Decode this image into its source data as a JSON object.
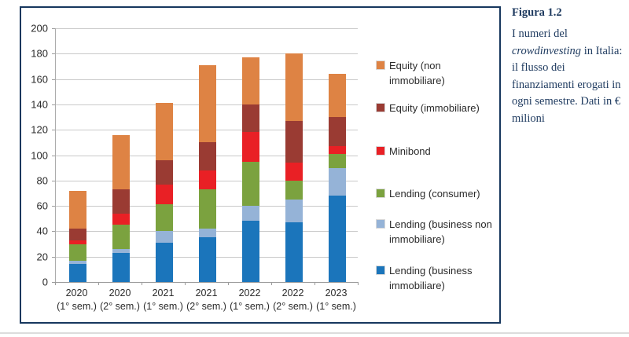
{
  "figure": {
    "label": "Figura 1.2",
    "caption_prefix": "I numeri del ",
    "caption_italic": "crowdinvesting",
    "caption_suffix": " in Italia: il flusso dei finanziamenti erogati in ogni semestre. Dati in € milioni"
  },
  "chart_data": {
    "type": "bar",
    "stacked": true,
    "title": "",
    "xlabel": "",
    "ylabel": "",
    "ylim": [
      0,
      200
    ],
    "yticks": [
      0,
      20,
      40,
      60,
      80,
      100,
      120,
      140,
      160,
      180,
      200
    ],
    "grid": true,
    "legend_position": "right",
    "categories": [
      {
        "year": "2020",
        "sem": "(1° sem.)"
      },
      {
        "year": "2020",
        "sem": "(2° sem.)"
      },
      {
        "year": "2021",
        "sem": "(1° sem.)"
      },
      {
        "year": "2021",
        "sem": "(2° sem.)"
      },
      {
        "year": "2022",
        "sem": "(1° sem.)"
      },
      {
        "year": "2022",
        "sem": "(2° sem.)"
      },
      {
        "year": "2023",
        "sem": "(1° sem.)"
      }
    ],
    "series": [
      {
        "name": "Lending (business immobiliare)",
        "color": "#1B75BB",
        "values": [
          14,
          23,
          31,
          35,
          48,
          47,
          68
        ]
      },
      {
        "name": "Lending (business non immobiliare)",
        "color": "#95B3D7",
        "values": [
          3,
          3,
          9,
          7,
          12,
          18,
          22
        ]
      },
      {
        "name": "Lending (consumer)",
        "color": "#7BA23F",
        "values": [
          13,
          19,
          21,
          31,
          35,
          15,
          11
        ]
      },
      {
        "name": "Minibond",
        "color": "#E92025",
        "values": [
          3,
          9,
          16,
          15,
          23,
          14,
          6
        ]
      },
      {
        "name": "Equity (immobiliare)",
        "color": "#9A3B33",
        "values": [
          9,
          19,
          19,
          22,
          22,
          33,
          23
        ]
      },
      {
        "name": "Equity (non immobiliare)",
        "color": "#DE8344",
        "values": [
          30,
          43,
          45,
          61,
          37,
          53,
          34
        ]
      }
    ],
    "bar_totals": [
      72,
      116,
      141,
      171,
      177,
      180,
      164
    ],
    "legend_order_top_to_bottom": [
      "Equity (non immobiliare)",
      "Equity (immobiliare)",
      "Minibond",
      "Lending (consumer)",
      "Lending (business non immobiliare)",
      "Lending (business immobiliare)"
    ]
  },
  "colors": {
    "frame_border": "#17375E",
    "caption_text": "#1E3A5F",
    "gridline": "#C9C9C9",
    "axis_line": "#9C9C9C"
  }
}
